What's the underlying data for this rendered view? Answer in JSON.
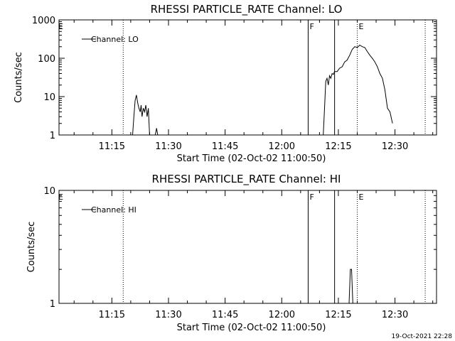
{
  "footer": {
    "timestamp": "19-Oct-2021 22:28"
  },
  "chart_data": [
    {
      "type": "line",
      "title": "RHESSI PARTICLE_RATE Channel: LO",
      "xlabel": "Start Time (02-Oct-02 11:00:50)",
      "ylabel": "Counts/sec",
      "yscale": "log",
      "xlim": [
        "11:01",
        "12:41"
      ],
      "ylim": [
        1,
        1000
      ],
      "x_ticks": [
        "11:15",
        "11:30",
        "11:45",
        "12:00",
        "12:15",
        "12:30"
      ],
      "y_ticks": [
        "1",
        "10",
        "100",
        "1000"
      ],
      "legend": {
        "entries": [
          "Channel: LO"
        ],
        "placement": "top-left"
      },
      "vertical_lines": [
        {
          "x": "12:07",
          "label": "F",
          "style": "solid"
        },
        {
          "x": "12:14",
          "label": "",
          "style": "solid"
        },
        {
          "x": "11:18",
          "label": "",
          "style": "dotted"
        },
        {
          "x": "12:20",
          "label": "E",
          "style": "dotted"
        },
        {
          "x": "12:38",
          "label": "",
          "style": "dotted"
        }
      ],
      "edge_labels": [
        {
          "x": "11:01",
          "label": "E"
        }
      ],
      "series": [
        {
          "name": "Channel: LO",
          "segments": [
            [
              [
                "11:20:30",
                1
              ],
              [
                "11:20:50",
                3
              ],
              [
                "11:21:10",
                8
              ],
              [
                "11:21:30",
                11
              ],
              [
                "11:21:50",
                7
              ],
              [
                "11:22:10",
                5
              ],
              [
                "11:22:30",
                4
              ],
              [
                "11:22:45",
                6
              ],
              [
                "11:23:00",
                3
              ],
              [
                "11:23:20",
                5
              ],
              [
                "11:23:40",
                4
              ],
              [
                "11:24:00",
                6
              ],
              [
                "11:24:20",
                3
              ],
              [
                "11:24:40",
                5
              ],
              [
                "11:25:00",
                1
              ]
            ],
            [
              [
                "11:26:30",
                1
              ],
              [
                "11:26:50",
                1.5
              ],
              [
                "11:27:10",
                1
              ]
            ],
            [
              [
                "12:11:00",
                1
              ],
              [
                "12:11:20",
                5
              ],
              [
                "12:11:40",
                25
              ],
              [
                "12:12:00",
                30
              ],
              [
                "12:12:20",
                20
              ],
              [
                "12:12:40",
                35
              ],
              [
                "12:13:00",
                30
              ],
              [
                "12:13:20",
                40
              ],
              [
                "12:13:40",
                38
              ],
              [
                "12:14:00",
                45
              ],
              [
                "12:14:40",
                45
              ],
              [
                "12:15:20",
                55
              ],
              [
                "12:16:00",
                60
              ],
              [
                "12:16:40",
                80
              ],
              [
                "12:17:20",
                90
              ],
              [
                "12:18:00",
                120
              ],
              [
                "12:18:40",
                170
              ],
              [
                "12:19:20",
                200
              ],
              [
                "12:20:00",
                190
              ],
              [
                "12:20:40",
                220
              ],
              [
                "12:21:20",
                200
              ],
              [
                "12:22:00",
                190
              ],
              [
                "12:22:40",
                150
              ],
              [
                "12:23:20",
                120
              ],
              [
                "12:24:00",
                100
              ],
              [
                "12:24:40",
                80
              ],
              [
                "12:25:20",
                60
              ],
              [
                "12:26:00",
                40
              ],
              [
                "12:26:40",
                30
              ],
              [
                "12:27:20",
                15
              ],
              [
                "12:28:00",
                5
              ],
              [
                "12:28:40",
                4
              ],
              [
                "12:29:20",
                2
              ]
            ]
          ]
        }
      ]
    },
    {
      "type": "line",
      "title": "RHESSI PARTICLE_RATE Channel: HI",
      "xlabel": "Start Time (02-Oct-02 11:00:50)",
      "ylabel": "Counts/sec",
      "yscale": "log",
      "xlim": [
        "11:01",
        "12:41"
      ],
      "ylim": [
        1,
        10
      ],
      "x_ticks": [
        "11:15",
        "11:30",
        "11:45",
        "12:00",
        "12:15",
        "12:30"
      ],
      "y_ticks": [
        "1",
        "10"
      ],
      "legend": {
        "entries": [
          "Channel: HI"
        ],
        "placement": "top-left"
      },
      "vertical_lines": [
        {
          "x": "12:07",
          "label": "F",
          "style": "solid"
        },
        {
          "x": "12:14",
          "label": "",
          "style": "solid"
        },
        {
          "x": "11:18",
          "label": "",
          "style": "dotted"
        },
        {
          "x": "12:20",
          "label": "E",
          "style": "dotted"
        },
        {
          "x": "12:38",
          "label": "",
          "style": "dotted"
        }
      ],
      "edge_labels": [
        {
          "x": "11:01",
          "label": "E"
        }
      ],
      "series": [
        {
          "name": "Channel: HI",
          "segments": [
            [
              [
                "12:17:50",
                1
              ],
              [
                "12:18:10",
                2
              ],
              [
                "12:18:30",
                2
              ],
              [
                "12:18:50",
                1
              ]
            ]
          ]
        }
      ]
    }
  ]
}
